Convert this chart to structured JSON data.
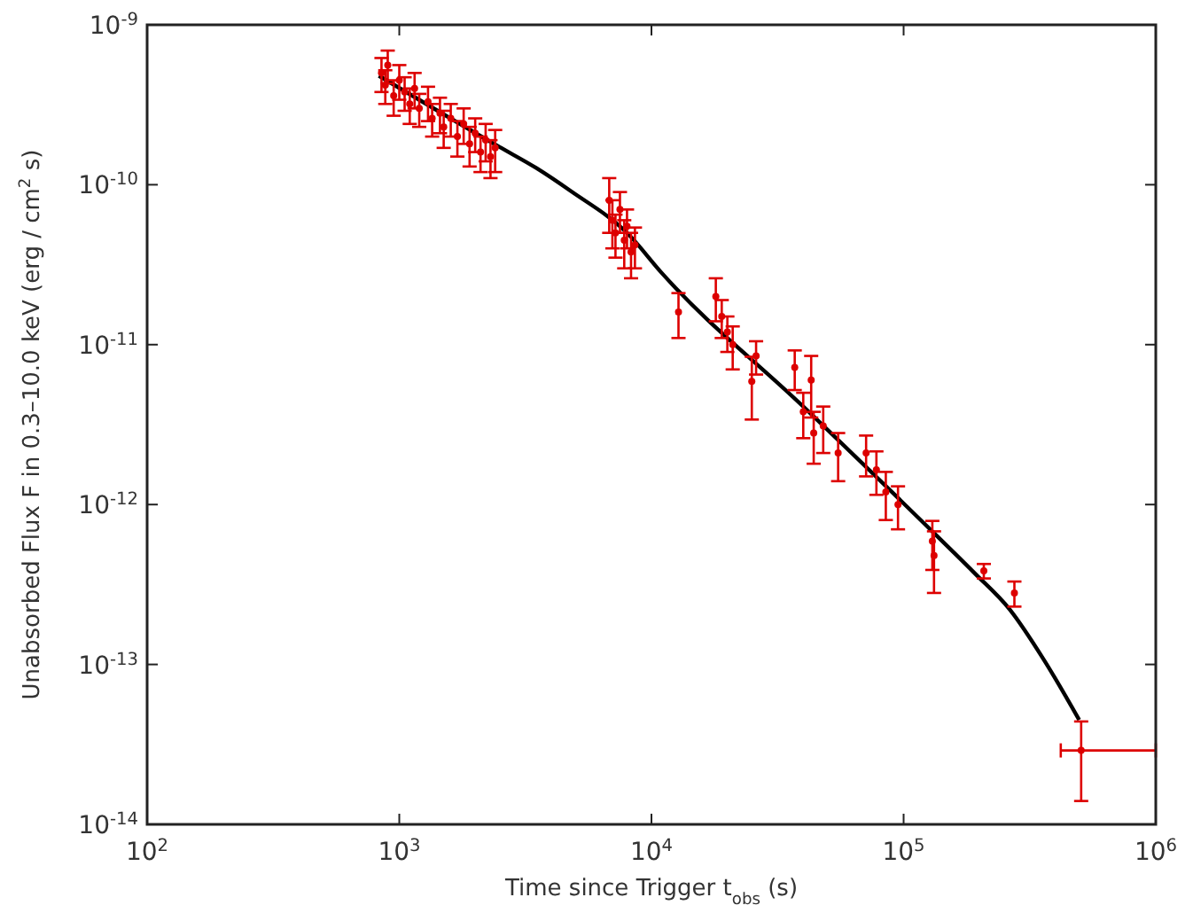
{
  "chart_data": {
    "type": "scatter",
    "xlabel": "Time since Trigger t$_{obs}$ (s)",
    "ylabel": "Unabsorbed Flux F in 0.3–10.0 keV (erg / cm$^{2}$ s)",
    "log": "xy",
    "grid": false,
    "xlim": [
      100,
      1000000
    ],
    "ylim": [
      1e-14,
      1e-09
    ],
    "xticks": [
      {
        "value": 100,
        "label": "10$^{2}$"
      },
      {
        "value": 1000,
        "label": "10$^{3}$"
      },
      {
        "value": 10000,
        "label": "10$^{4}$"
      },
      {
        "value": 100000,
        "label": "10$^{5}$"
      },
      {
        "value": 1000000,
        "label": "10$^{6}$"
      }
    ],
    "yticks": [
      {
        "value": 1e-14,
        "label": "10$^{-14}$"
      },
      {
        "value": 1e-13,
        "label": "10$^{-13}$"
      },
      {
        "value": 1e-12,
        "label": "10$^{-12}$"
      },
      {
        "value": 1e-11,
        "label": "10$^{-11}$"
      },
      {
        "value": 1e-10,
        "label": "10$^{-10}$"
      },
      {
        "value": 1e-09,
        "label": "10$^{-9}$"
      }
    ],
    "series": [
      {
        "marker": "circle",
        "color": "#dd0000",
        "x": [
          850,
          880,
          900,
          950,
          1000,
          1050,
          1100,
          1150,
          1200,
          1300,
          1350,
          1450,
          1500,
          1600,
          1700,
          1800,
          1900,
          2000,
          2100,
          2200,
          2300,
          2400,
          6800,
          7000,
          7200,
          7500,
          7800,
          8000,
          8300,
          8600,
          12800,
          18000,
          19000,
          20000,
          21000,
          25000,
          26000,
          37000,
          40000,
          43000,
          44000,
          48000,
          55000,
          71000,
          78000,
          85000,
          95000,
          130000,
          132000,
          208000,
          275000,
          506000
        ],
        "values": [
          5e-10,
          4.2e-10,
          5.6e-10,
          3.6e-10,
          4.5e-10,
          3.8e-10,
          3.2e-10,
          4e-10,
          3e-10,
          3.3e-10,
          2.6e-10,
          2.8e-10,
          2.3e-10,
          2.6e-10,
          2e-10,
          2.4e-10,
          1.8e-10,
          2.1e-10,
          1.6e-10,
          1.9e-10,
          1.5e-10,
          1.7e-10,
          8e-11,
          6e-11,
          5e-11,
          7e-11,
          4.5e-11,
          5.5e-11,
          3.8e-11,
          4.2e-11,
          1.6e-11,
          2e-11,
          1.5e-11,
          1.2e-11,
          1e-11,
          5.9e-12,
          8.5e-12,
          7.2e-12,
          3.8e-12,
          6e-12,
          2.8e-12,
          3.1e-12,
          2.1e-12,
          2.1e-12,
          1.65e-12,
          1.2e-12,
          1e-12,
          5.9e-13,
          4.8e-13,
          3.85e-13,
          2.8e-13,
          2.9e-14
        ],
        "errors": [
          1.2e-10,
          1e-10,
          1.3e-10,
          9e-11,
          1.1e-10,
          9e-11,
          8e-11,
          1e-10,
          7e-11,
          8e-11,
          6e-11,
          7e-11,
          6e-11,
          6e-11,
          5e-11,
          6e-11,
          5e-11,
          5e-11,
          4e-11,
          5e-11,
          4e-11,
          5e-11,
          3e-11,
          2e-11,
          1.5e-11,
          2e-11,
          1.5e-11,
          1.5e-11,
          1.2e-11,
          1.2e-11,
          5e-12,
          6e-12,
          4e-12,
          3e-12,
          3e-12,
          2.5e-12,
          2e-12,
          2e-12,
          1.2e-12,
          2.5e-12,
          1e-12,
          1e-12,
          7e-13,
          6e-13,
          5e-13,
          4e-13,
          3e-13,
          2e-13,
          2e-13,
          4e-14,
          5e-14,
          [
            1.4e-14,
            4.4e-14
          ]
        ],
        "xerrors": [
          null,
          null,
          null,
          null,
          null,
          null,
          null,
          null,
          null,
          null,
          null,
          null,
          null,
          null,
          null,
          null,
          null,
          null,
          null,
          null,
          null,
          null,
          null,
          null,
          null,
          null,
          null,
          null,
          null,
          null,
          null,
          null,
          null,
          null,
          null,
          null,
          null,
          null,
          null,
          null,
          null,
          null,
          null,
          null,
          null,
          null,
          null,
          null,
          null,
          null,
          null,
          [
            420000,
            1000000
          ]
        ]
      },
      {
        "type": "line",
        "marker": "none",
        "color": "#000000",
        "x": [
          830,
          2500,
          3500,
          4800,
          8100,
          11000,
          40000,
          135000,
          192000,
          264000,
          360000,
          497000
        ],
        "values": [
          4.8e-10,
          1.72e-10,
          1.27e-10,
          9.1e-11,
          4.9e-11,
          2.8e-11,
          4.1e-12,
          6.4e-13,
          3.7e-13,
          2.2e-13,
          1.07e-13,
          4.5e-14
        ]
      }
    ]
  }
}
